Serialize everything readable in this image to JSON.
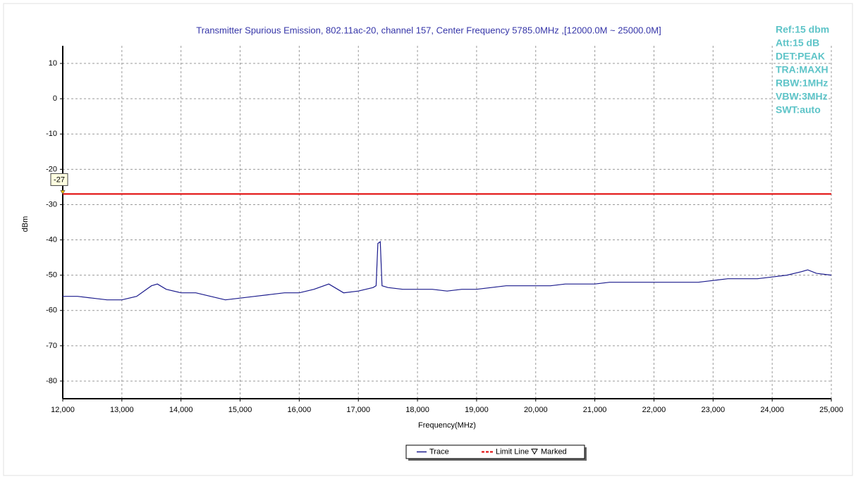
{
  "chart_data": {
    "type": "line",
    "title": "Transmitter Spurious Emission, 802.11ac-20, channel 157, Center Frequency 5785.0MHz ,[12000.0M ~ 25000.0M]",
    "x_label": "Frequency(MHz)",
    "y_label": "dBm",
    "info": [
      "Ref:15 dbm",
      "Att:15 dB",
      "DET:PEAK",
      "TRA:MAXH",
      "RBW:1MHz",
      "VBW:3MHz",
      "SWT:auto"
    ],
    "x": [
      12000,
      12250,
      12500,
      12750,
      13000,
      13250,
      13500,
      13600,
      13750,
      14000,
      14250,
      14500,
      14750,
      15000,
      15250,
      15500,
      15750,
      16000,
      16250,
      16500,
      16750,
      17000,
      17250,
      17300,
      17330,
      17370,
      17400,
      17500,
      17750,
      18000,
      18250,
      18500,
      18750,
      19000,
      19250,
      19500,
      19750,
      20000,
      20250,
      20500,
      20750,
      21000,
      21250,
      21500,
      21750,
      22000,
      22250,
      22500,
      22750,
      23000,
      23250,
      23500,
      23750,
      24000,
      24250,
      24500,
      24600,
      24750,
      25000
    ],
    "series": [
      {
        "name": "Trace",
        "color": "#1a1a8c",
        "values": [
          -56,
          -56,
          -56.5,
          -57,
          -57,
          -56,
          -53,
          -52.5,
          -54,
          -55,
          -55,
          -56,
          -57,
          -56.5,
          -56,
          -55.5,
          -55,
          -55,
          -54,
          -52.5,
          -55,
          -54.5,
          -53.5,
          -53,
          -41,
          -40.5,
          -53,
          -53.5,
          -54,
          -54,
          -54,
          -54.5,
          -54,
          -54,
          -53.5,
          -53,
          -53,
          -53,
          -53,
          -52.5,
          -52.5,
          -52.5,
          -52,
          -52,
          -52,
          -52,
          -52,
          -52,
          -52,
          -51.5,
          -51,
          -51,
          -51,
          -50.5,
          -50,
          -49,
          -48.5,
          -49.5,
          -50
        ]
      }
    ],
    "limit": {
      "name": "Limit Line",
      "value": -27,
      "color": "#e00000"
    },
    "marker": {
      "name": "Marked",
      "x": 12000,
      "y": -27
    },
    "xlim": [
      12000,
      25000
    ],
    "ylim": [
      -85,
      15
    ],
    "xticks": [
      {
        "value": 12000,
        "label": "12,000"
      },
      {
        "value": 13000,
        "label": "13,000"
      },
      {
        "value": 14000,
        "label": "14,000"
      },
      {
        "value": 15000,
        "label": "15,000"
      },
      {
        "value": 16000,
        "label": "16,000"
      },
      {
        "value": 17000,
        "label": "17,000"
      },
      {
        "value": 18000,
        "label": "18,000"
      },
      {
        "value": 19000,
        "label": "19,000"
      },
      {
        "value": 20000,
        "label": "20,000"
      },
      {
        "value": 21000,
        "label": "21,000"
      },
      {
        "value": 22000,
        "label": "22,000"
      },
      {
        "value": 23000,
        "label": "23,000"
      },
      {
        "value": 24000,
        "label": "24,000"
      },
      {
        "value": 25000,
        "label": "25,000"
      }
    ],
    "yticks": [
      10,
      0,
      -10,
      -20,
      -30,
      -40,
      -50,
      -60,
      -70,
      -80
    ],
    "grid": true
  }
}
